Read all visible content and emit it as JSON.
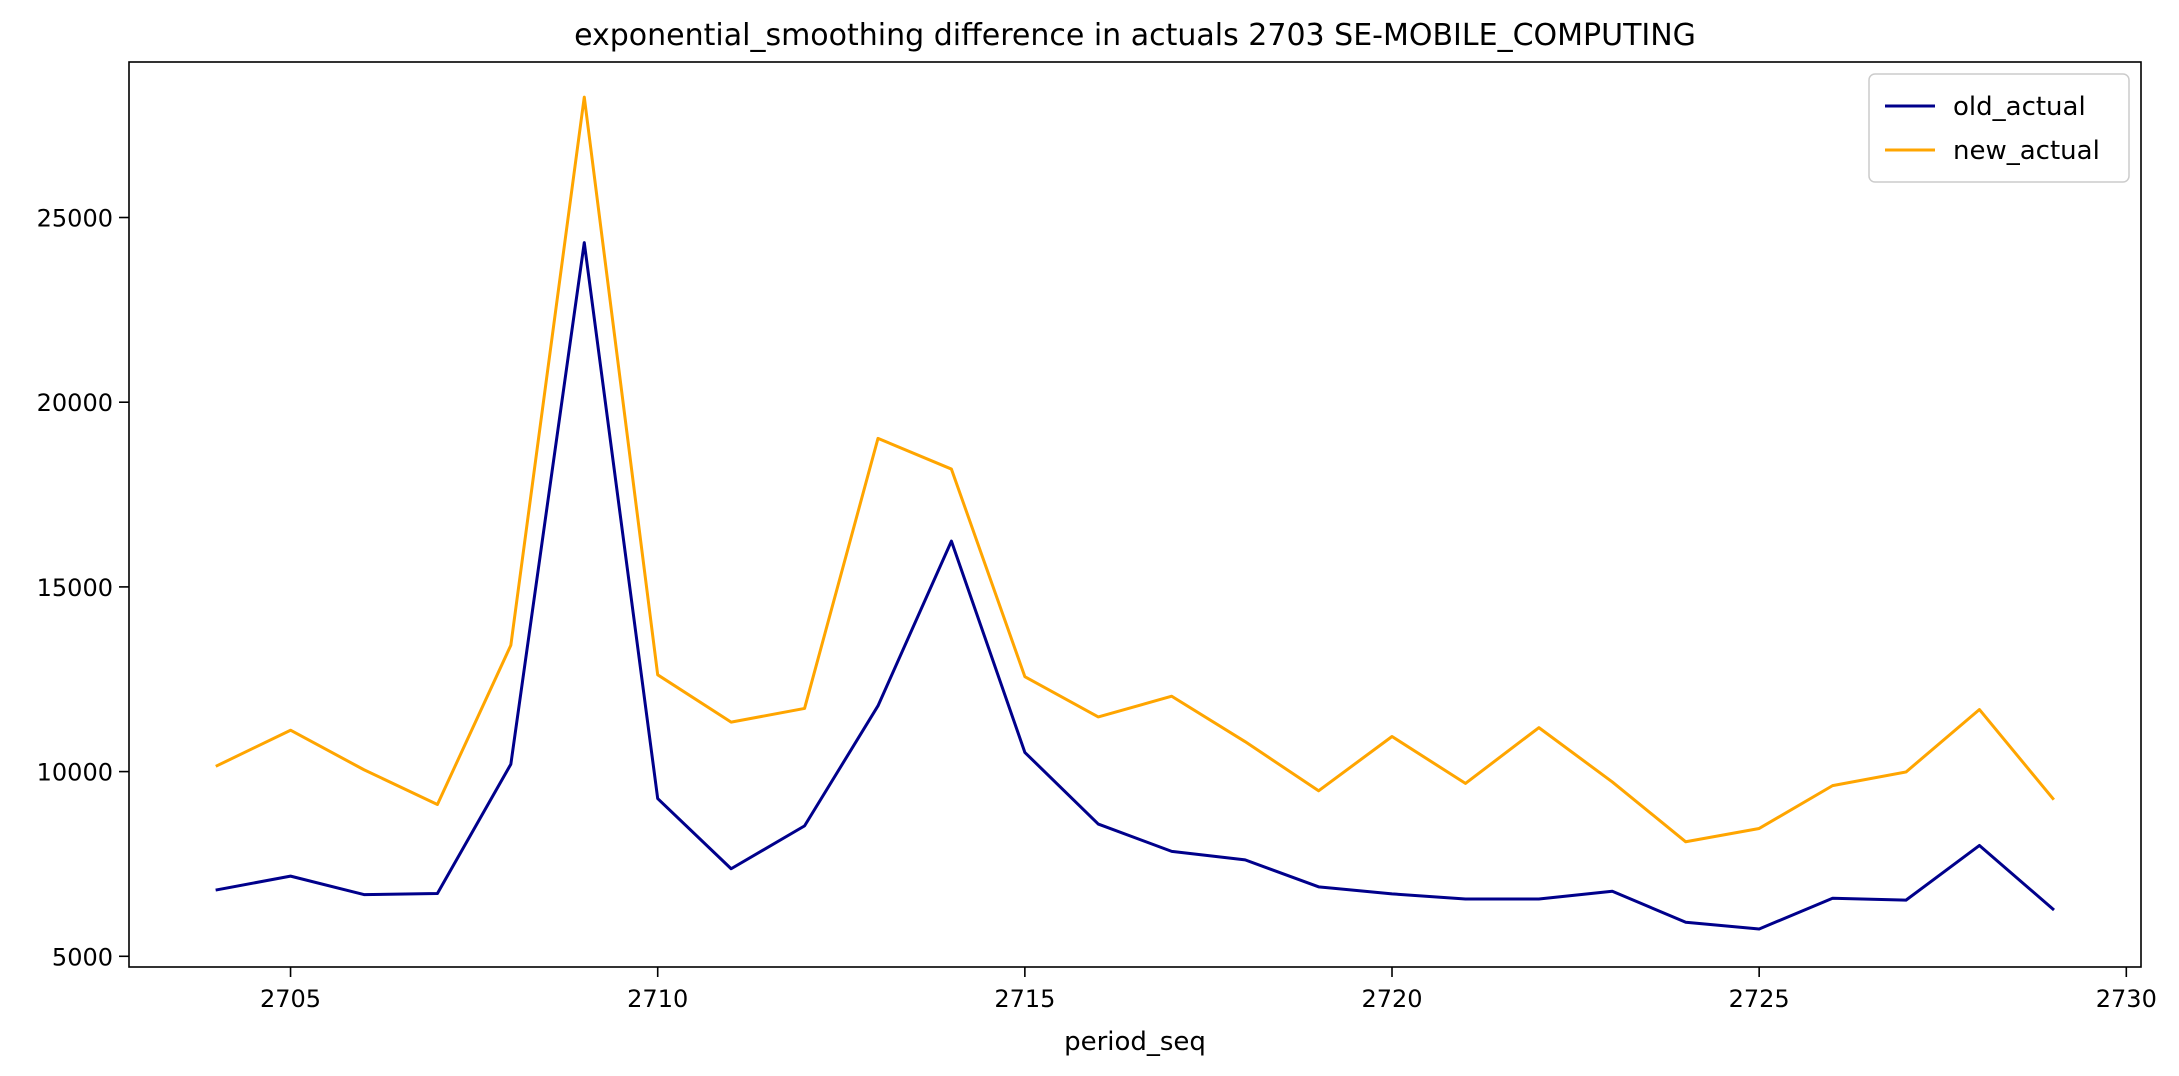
{
  "chart_data": {
    "type": "line",
    "title": "exponential_smoothing difference in actuals 2703 SE-MOBILE_COMPUTING",
    "xlabel": "period_seq",
    "ylabel": "",
    "x": [
      2704,
      2705,
      2706,
      2707,
      2708,
      2709,
      2710,
      2711,
      2712,
      2713,
      2714,
      2715,
      2716,
      2717,
      2718,
      2719,
      2720,
      2721,
      2722,
      2723,
      2724,
      2725,
      2726,
      2727,
      2728,
      2729
    ],
    "series": [
      {
        "name": "old_actual",
        "color": "#00008b",
        "values": [
          6800,
          7170,
          6670,
          6700,
          10200,
          24320,
          9270,
          7370,
          8530,
          11780,
          16240,
          10520,
          8580,
          7840,
          7610,
          6880,
          6690,
          6550,
          6550,
          6760,
          5920,
          5740,
          6570,
          6520,
          8000,
          6280
        ]
      },
      {
        "name": "new_actual",
        "color": "#ffa500",
        "values": [
          10160,
          11120,
          10050,
          9110,
          13420,
          28260,
          12620,
          11340,
          11710,
          19020,
          18190,
          12570,
          11480,
          12040,
          10810,
          9480,
          10950,
          9680,
          11190,
          9720,
          8100,
          8460,
          9620,
          9990,
          11680,
          9270
        ]
      }
    ],
    "xlim": [
      2702.8,
      2730.2
    ],
    "ylim": [
      4710,
      29210
    ],
    "xticks": [
      2705,
      2710,
      2715,
      2720,
      2725,
      2730
    ],
    "yticks": [
      5000,
      10000,
      15000,
      20000,
      25000
    ],
    "grid": false,
    "legend": "top-right"
  }
}
